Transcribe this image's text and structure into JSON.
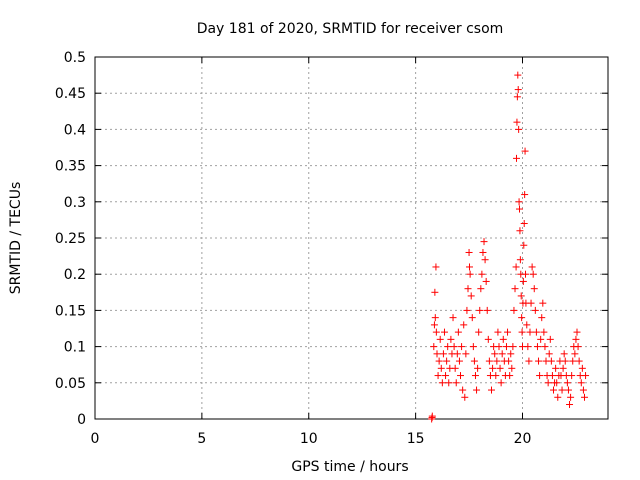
{
  "chart_data": {
    "type": "scatter",
    "title": "Day 181 of 2020, SRMTID for receiver csom",
    "xlabel": "GPS time / hours",
    "ylabel": "SRMTID / TECUs",
    "xlim": [
      0,
      24
    ],
    "ylim": [
      0,
      0.5
    ],
    "x_ticks": [
      0,
      5,
      10,
      15,
      20
    ],
    "x_tick_labels": [
      "0",
      "5",
      "10",
      "15",
      "20"
    ],
    "y_ticks": [
      0,
      0.05,
      0.1,
      0.15,
      0.2,
      0.25,
      0.3,
      0.35,
      0.4,
      0.45,
      0.5
    ],
    "y_tick_labels": [
      "0",
      "0.05",
      "0.1",
      "0.15",
      "0.2",
      "0.25",
      "0.3",
      "0.35",
      "0.4",
      "0.45",
      "0.5"
    ],
    "grid": true,
    "marker": "+",
    "series": [
      {
        "name": "SRMTID",
        "color": "#ff0000",
        "points": [
          [
            15.75,
            0.0
          ],
          [
            15.77,
            0.002
          ],
          [
            15.78,
            0.004
          ],
          [
            15.85,
            0.1
          ],
          [
            15.88,
            0.13
          ],
          [
            15.9,
            0.175
          ],
          [
            15.92,
            0.14
          ],
          [
            15.95,
            0.21
          ],
          [
            15.97,
            0.12
          ],
          [
            16.0,
            0.09
          ],
          [
            16.05,
            0.06
          ],
          [
            16.1,
            0.08
          ],
          [
            16.15,
            0.11
          ],
          [
            16.2,
            0.07
          ],
          [
            16.25,
            0.05
          ],
          [
            16.3,
            0.09
          ],
          [
            16.35,
            0.12
          ],
          [
            16.4,
            0.06
          ],
          [
            16.45,
            0.08
          ],
          [
            16.5,
            0.1
          ],
          [
            16.55,
            0.05
          ],
          [
            16.6,
            0.07
          ],
          [
            16.65,
            0.11
          ],
          [
            16.7,
            0.09
          ],
          [
            16.75,
            0.14
          ],
          [
            16.8,
            0.1
          ],
          [
            16.85,
            0.07
          ],
          [
            16.9,
            0.05
          ],
          [
            16.95,
            0.09
          ],
          [
            17.0,
            0.12
          ],
          [
            17.05,
            0.08
          ],
          [
            17.1,
            0.06
          ],
          [
            17.15,
            0.1
          ],
          [
            17.2,
            0.04
          ],
          [
            17.25,
            0.13
          ],
          [
            17.3,
            0.03
          ],
          [
            17.35,
            0.09
          ],
          [
            17.4,
            0.15
          ],
          [
            17.45,
            0.18
          ],
          [
            17.5,
            0.23
          ],
          [
            17.52,
            0.21
          ],
          [
            17.55,
            0.2
          ],
          [
            17.6,
            0.17
          ],
          [
            17.65,
            0.14
          ],
          [
            17.7,
            0.1
          ],
          [
            17.75,
            0.08
          ],
          [
            17.8,
            0.06
          ],
          [
            17.85,
            0.04
          ],
          [
            17.9,
            0.07
          ],
          [
            17.95,
            0.12
          ],
          [
            18.0,
            0.15
          ],
          [
            18.05,
            0.18
          ],
          [
            18.1,
            0.2
          ],
          [
            18.15,
            0.23
          ],
          [
            18.2,
            0.245
          ],
          [
            18.25,
            0.22
          ],
          [
            18.3,
            0.19
          ],
          [
            18.35,
            0.15
          ],
          [
            18.4,
            0.11
          ],
          [
            18.45,
            0.08
          ],
          [
            18.5,
            0.06
          ],
          [
            18.55,
            0.04
          ],
          [
            18.6,
            0.07
          ],
          [
            18.65,
            0.1
          ],
          [
            18.7,
            0.09
          ],
          [
            18.75,
            0.06
          ],
          [
            18.8,
            0.08
          ],
          [
            18.85,
            0.12
          ],
          [
            18.9,
            0.1
          ],
          [
            18.95,
            0.07
          ],
          [
            19.0,
            0.05
          ],
          [
            19.05,
            0.09
          ],
          [
            19.1,
            0.11
          ],
          [
            19.15,
            0.08
          ],
          [
            19.2,
            0.06
          ],
          [
            19.25,
            0.1
          ],
          [
            19.3,
            0.12
          ],
          [
            19.35,
            0.08
          ],
          [
            19.4,
            0.06
          ],
          [
            19.45,
            0.09
          ],
          [
            19.5,
            0.07
          ],
          [
            19.55,
            0.1
          ],
          [
            19.6,
            0.15
          ],
          [
            19.65,
            0.18
          ],
          [
            19.7,
            0.21
          ],
          [
            19.72,
            0.36
          ],
          [
            19.74,
            0.41
          ],
          [
            19.76,
            0.445
          ],
          [
            19.78,
            0.475
          ],
          [
            19.8,
            0.455
          ],
          [
            19.82,
            0.4
          ],
          [
            19.84,
            0.3
          ],
          [
            19.86,
            0.29
          ],
          [
            19.88,
            0.26
          ],
          [
            19.9,
            0.22
          ],
          [
            19.92,
            0.2
          ],
          [
            19.94,
            0.17
          ],
          [
            19.96,
            0.14
          ],
          [
            19.98,
            0.12
          ],
          [
            20.0,
            0.1
          ],
          [
            20.02,
            0.16
          ],
          [
            20.04,
            0.19
          ],
          [
            20.06,
            0.24
          ],
          [
            20.08,
            0.27
          ],
          [
            20.1,
            0.31
          ],
          [
            20.12,
            0.37
          ],
          [
            20.14,
            0.2
          ],
          [
            20.16,
            0.16
          ],
          [
            20.2,
            0.13
          ],
          [
            20.25,
            0.1
          ],
          [
            20.3,
            0.08
          ],
          [
            20.35,
            0.12
          ],
          [
            20.4,
            0.16
          ],
          [
            20.45,
            0.21
          ],
          [
            20.5,
            0.2
          ],
          [
            20.55,
            0.18
          ],
          [
            20.6,
            0.15
          ],
          [
            20.65,
            0.12
          ],
          [
            20.7,
            0.1
          ],
          [
            20.75,
            0.08
          ],
          [
            20.8,
            0.06
          ],
          [
            20.85,
            0.11
          ],
          [
            20.9,
            0.14
          ],
          [
            20.95,
            0.16
          ],
          [
            21.0,
            0.12
          ],
          [
            21.05,
            0.1
          ],
          [
            21.1,
            0.08
          ],
          [
            21.15,
            0.06
          ],
          [
            21.2,
            0.05
          ],
          [
            21.25,
            0.09
          ],
          [
            21.3,
            0.11
          ],
          [
            21.35,
            0.08
          ],
          [
            21.4,
            0.06
          ],
          [
            21.45,
            0.04
          ],
          [
            21.5,
            0.05
          ],
          [
            21.55,
            0.07
          ],
          [
            21.6,
            0.05
          ],
          [
            21.65,
            0.03
          ],
          [
            21.7,
            0.06
          ],
          [
            21.75,
            0.08
          ],
          [
            21.8,
            0.06
          ],
          [
            21.85,
            0.04
          ],
          [
            21.9,
            0.07
          ],
          [
            21.95,
            0.09
          ],
          [
            22.0,
            0.08
          ],
          [
            22.05,
            0.06
          ],
          [
            22.1,
            0.05
          ],
          [
            22.15,
            0.04
          ],
          [
            22.2,
            0.02
          ],
          [
            22.25,
            0.03
          ],
          [
            22.3,
            0.06
          ],
          [
            22.35,
            0.08
          ],
          [
            22.4,
            0.1
          ],
          [
            22.45,
            0.09
          ],
          [
            22.5,
            0.11
          ],
          [
            22.55,
            0.12
          ],
          [
            22.6,
            0.1
          ],
          [
            22.65,
            0.08
          ],
          [
            22.7,
            0.06
          ],
          [
            22.75,
            0.05
          ],
          [
            22.8,
            0.07
          ],
          [
            22.85,
            0.04
          ],
          [
            22.9,
            0.03
          ],
          [
            22.95,
            0.06
          ]
        ]
      }
    ]
  }
}
